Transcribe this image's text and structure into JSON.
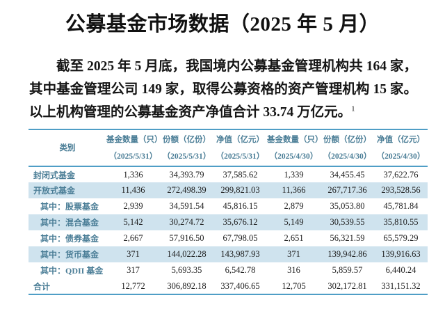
{
  "title": "公募基金市场数据（2025 年 5 月）",
  "paragraph": {
    "lines": [
      "截至 2025 年 5 月底，我国境内公募基金管理机构共 164 家，",
      "其中基金管理公司 149 家，取得公募资格的资产管理机构 15 家。",
      "以上机构管理的公募基金资产净值合计 33.74 万亿元。"
    ],
    "footnote_marker": "1"
  },
  "table": {
    "columns": [
      {
        "label": "类别",
        "date": ""
      },
      {
        "label": "基金数量（只）",
        "date": "（2025/5/31）"
      },
      {
        "label": "份额（亿份）",
        "date": "（2025/5/31）"
      },
      {
        "label": "净值（亿元）",
        "date": "（2025/5/31）"
      },
      {
        "label": "基金数量（只）",
        "date": "（2025/4/30）"
      },
      {
        "label": "份额（亿份）",
        "date": "（2025/4/30）"
      },
      {
        "label": "净值（亿元）",
        "date": "（2025/4/30）"
      }
    ],
    "rows": [
      {
        "label": "封闭式基金",
        "indent": false,
        "highlight": false,
        "values": [
          "1,336",
          "34,393.79",
          "37,585.62",
          "1,339",
          "34,455.45",
          "37,622.76"
        ]
      },
      {
        "label": "开放式基金",
        "indent": false,
        "highlight": true,
        "values": [
          "11,436",
          "272,498.39",
          "299,821.03",
          "11,366",
          "267,717.36",
          "293,528.56"
        ]
      },
      {
        "label": "其中：股票基金",
        "indent": true,
        "highlight": false,
        "values": [
          "2,939",
          "34,591.54",
          "45,816.15",
          "2,879",
          "35,053.80",
          "45,781.84"
        ]
      },
      {
        "label": "其中：混合基金",
        "indent": true,
        "highlight": true,
        "values": [
          "5,142",
          "30,274.72",
          "35,676.12",
          "5,149",
          "30,539.55",
          "35,810.55"
        ]
      },
      {
        "label": "其中：债券基金",
        "indent": true,
        "highlight": false,
        "values": [
          "2,667",
          "57,916.50",
          "67,798.05",
          "2,651",
          "56,321.59",
          "65,579.29"
        ]
      },
      {
        "label": "其中：货币基金",
        "indent": true,
        "highlight": true,
        "values": [
          "371",
          "144,022.28",
          "143,987.93",
          "371",
          "139,942.86",
          "139,916.63"
        ]
      },
      {
        "label": "其中：QDII 基金",
        "indent": true,
        "highlight": false,
        "values": [
          "317",
          "5,693.35",
          "6,542.78",
          "316",
          "5,859.57",
          "6,440.24"
        ]
      },
      {
        "label": "合计",
        "indent": false,
        "highlight": false,
        "values": [
          "12,772",
          "306,892.18",
          "337,406.65",
          "12,705",
          "302,172.81",
          "331,151.32"
        ]
      }
    ]
  },
  "colors": {
    "accent_line": "#4f9ec6",
    "header_text": "#4a7d96",
    "highlight_bg": "#cfe3ee",
    "body_text": "#151515"
  }
}
